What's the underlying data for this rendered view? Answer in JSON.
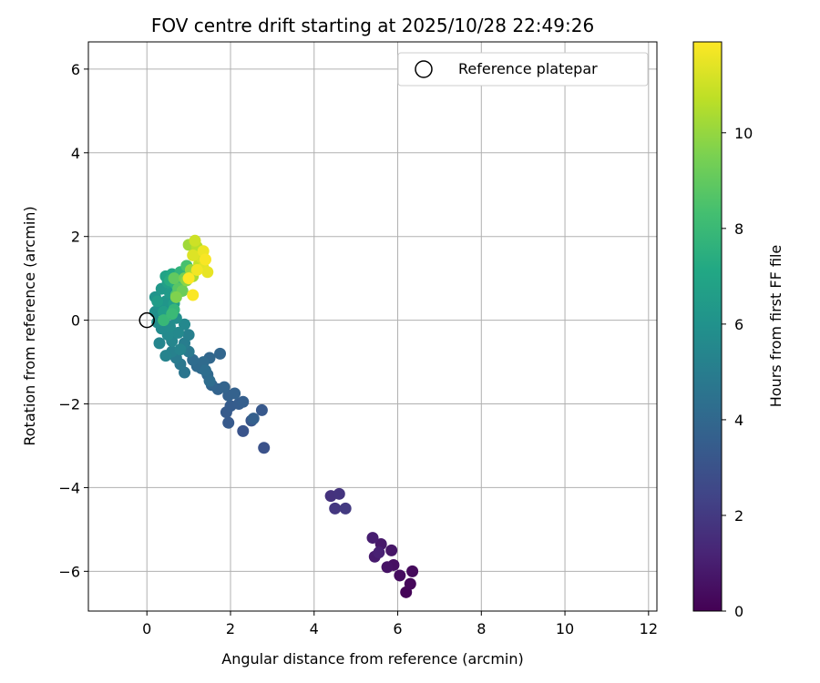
{
  "chart_data": {
    "type": "scatter",
    "title": "FOV centre drift starting at 2025/10/28 22:49:26",
    "xlabel": "Angular distance from reference (arcmin)",
    "ylabel": "Rotation from reference (arcmin)",
    "xlim": [
      -1.4,
      12.2
    ],
    "ylim": [
      -6.95,
      6.65
    ],
    "xticks": [
      0,
      2,
      4,
      6,
      8,
      10,
      12
    ],
    "yticks": [
      -6,
      -4,
      -2,
      0,
      2,
      4,
      6
    ],
    "grid": true,
    "legend": {
      "placement": "top-right",
      "entries": [
        "Reference platepar"
      ]
    },
    "reference_point": {
      "x": 0,
      "y": 0
    },
    "colorbar": {
      "label": "Hours from first FF file",
      "range": [
        0,
        11.9
      ],
      "ticks": [
        0,
        2,
        4,
        6,
        8,
        10
      ],
      "colormap": "viridis"
    },
    "points": [
      {
        "x": 6.2,
        "y": -6.5,
        "h": 0.1
      },
      {
        "x": 6.3,
        "y": -6.3,
        "h": 0.2
      },
      {
        "x": 6.35,
        "y": -6.0,
        "h": 0.3
      },
      {
        "x": 6.05,
        "y": -6.1,
        "h": 0.4
      },
      {
        "x": 5.9,
        "y": -5.85,
        "h": 0.5
      },
      {
        "x": 5.75,
        "y": -5.9,
        "h": 0.6
      },
      {
        "x": 5.85,
        "y": -5.5,
        "h": 0.7
      },
      {
        "x": 5.6,
        "y": -5.35,
        "h": 0.8
      },
      {
        "x": 5.45,
        "y": -5.65,
        "h": 0.9
      },
      {
        "x": 5.4,
        "y": -5.2,
        "h": 1.0
      },
      {
        "x": 5.55,
        "y": -5.55,
        "h": 1.1
      },
      {
        "x": 4.4,
        "y": -4.2,
        "h": 1.7
      },
      {
        "x": 4.6,
        "y": -4.15,
        "h": 1.8
      },
      {
        "x": 4.5,
        "y": -4.5,
        "h": 1.9
      },
      {
        "x": 4.75,
        "y": -4.5,
        "h": 2.0
      },
      {
        "x": 2.8,
        "y": -3.05,
        "h": 3.0
      },
      {
        "x": 2.3,
        "y": -2.65,
        "h": 3.1
      },
      {
        "x": 2.5,
        "y": -2.4,
        "h": 3.2
      },
      {
        "x": 2.75,
        "y": -2.15,
        "h": 3.3
      },
      {
        "x": 1.95,
        "y": -2.45,
        "h": 3.35
      },
      {
        "x": 1.9,
        "y": -2.2,
        "h": 3.4
      },
      {
        "x": 2.0,
        "y": -2.05,
        "h": 3.45
      },
      {
        "x": 2.2,
        "y": -2.0,
        "h": 3.5
      },
      {
        "x": 2.3,
        "y": -1.95,
        "h": 3.55
      },
      {
        "x": 2.55,
        "y": -2.35,
        "h": 3.6
      },
      {
        "x": 1.95,
        "y": -1.8,
        "h": 3.65
      },
      {
        "x": 2.1,
        "y": -1.75,
        "h": 3.7
      },
      {
        "x": 1.7,
        "y": -1.65,
        "h": 3.75
      },
      {
        "x": 1.85,
        "y": -1.6,
        "h": 3.8
      },
      {
        "x": 1.55,
        "y": -1.55,
        "h": 3.85
      },
      {
        "x": 1.75,
        "y": -0.8,
        "h": 3.9
      },
      {
        "x": 1.5,
        "y": -0.9,
        "h": 3.95
      },
      {
        "x": 1.45,
        "y": -1.3,
        "h": 4.0
      },
      {
        "x": 1.3,
        "y": -1.15,
        "h": 4.05
      },
      {
        "x": 1.2,
        "y": -1.1,
        "h": 4.1
      },
      {
        "x": 1.35,
        "y": -1.0,
        "h": 4.15
      },
      {
        "x": 1.1,
        "y": -0.95,
        "h": 4.2
      },
      {
        "x": 1.5,
        "y": -1.45,
        "h": 4.25
      },
      {
        "x": 1.4,
        "y": -1.2,
        "h": 4.3
      },
      {
        "x": 0.9,
        "y": -1.25,
        "h": 4.6
      },
      {
        "x": 0.8,
        "y": -1.05,
        "h": 4.7
      },
      {
        "x": 1.0,
        "y": -0.75,
        "h": 4.8
      },
      {
        "x": 0.7,
        "y": -0.9,
        "h": 4.9
      },
      {
        "x": 0.9,
        "y": -0.55,
        "h": 5.0
      },
      {
        "x": 1.0,
        "y": -0.35,
        "h": 5.1
      },
      {
        "x": 0.6,
        "y": -0.75,
        "h": 5.2
      },
      {
        "x": 0.45,
        "y": -0.85,
        "h": 5.3
      },
      {
        "x": 0.8,
        "y": -0.7,
        "h": 5.35
      },
      {
        "x": 0.3,
        "y": -0.55,
        "h": 5.4
      },
      {
        "x": 0.6,
        "y": -0.5,
        "h": 5.45
      },
      {
        "x": 0.9,
        "y": -0.1,
        "h": 5.5
      },
      {
        "x": 0.75,
        "y": -0.3,
        "h": 5.55
      },
      {
        "x": 0.5,
        "y": -0.35,
        "h": 5.6
      },
      {
        "x": 0.35,
        "y": -0.2,
        "h": 5.65
      },
      {
        "x": 0.55,
        "y": -0.15,
        "h": 5.7
      },
      {
        "x": 0.25,
        "y": -0.05,
        "h": 5.75
      },
      {
        "x": 0.7,
        "y": 0.05,
        "h": 5.8
      },
      {
        "x": 0.45,
        "y": 0.1,
        "h": 5.85
      },
      {
        "x": 0.2,
        "y": 0.2,
        "h": 5.9
      },
      {
        "x": 0.6,
        "y": 0.25,
        "h": 5.95
      },
      {
        "x": 0.3,
        "y": 0.35,
        "h": 6.0
      },
      {
        "x": 0.2,
        "y": 0.55,
        "h": 6.1
      },
      {
        "x": 0.45,
        "y": 0.45,
        "h": 6.2
      },
      {
        "x": 0.35,
        "y": 0.75,
        "h": 6.3
      },
      {
        "x": 0.55,
        "y": 0.65,
        "h": 6.4
      },
      {
        "x": 0.25,
        "y": 0.45,
        "h": 6.5
      },
      {
        "x": 0.4,
        "y": 0.2,
        "h": 6.55
      },
      {
        "x": 0.65,
        "y": 0.4,
        "h": 6.6
      },
      {
        "x": 0.5,
        "y": 0.9,
        "h": 6.7
      },
      {
        "x": 0.45,
        "y": 1.05,
        "h": 6.9
      },
      {
        "x": 0.6,
        "y": 1.1,
        "h": 7.1
      },
      {
        "x": 0.55,
        "y": 0.95,
        "h": 7.3
      },
      {
        "x": 0.7,
        "y": 0.85,
        "h": 7.5
      },
      {
        "x": 0.8,
        "y": 1.15,
        "h": 7.7
      },
      {
        "x": 0.65,
        "y": 0.25,
        "h": 7.8
      },
      {
        "x": 0.4,
        "y": 0.0,
        "h": 7.9
      },
      {
        "x": 0.6,
        "y": 0.15,
        "h": 8.0
      },
      {
        "x": 0.85,
        "y": 0.9,
        "h": 8.2
      },
      {
        "x": 0.95,
        "y": 1.3,
        "h": 8.4
      },
      {
        "x": 0.7,
        "y": 0.6,
        "h": 8.6
      },
      {
        "x": 0.75,
        "y": 0.75,
        "h": 8.8
      },
      {
        "x": 0.65,
        "y": 1.0,
        "h": 9.0
      },
      {
        "x": 0.85,
        "y": 0.7,
        "h": 9.2
      },
      {
        "x": 0.9,
        "y": 1.0,
        "h": 9.4
      },
      {
        "x": 0.7,
        "y": 0.55,
        "h": 9.6
      },
      {
        "x": 0.95,
        "y": 0.95,
        "h": 9.8
      },
      {
        "x": 1.05,
        "y": 1.2,
        "h": 10.0
      },
      {
        "x": 1.0,
        "y": 1.8,
        "h": 10.2
      },
      {
        "x": 1.1,
        "y": 1.05,
        "h": 10.4
      },
      {
        "x": 1.2,
        "y": 1.75,
        "h": 10.6
      },
      {
        "x": 1.25,
        "y": 1.35,
        "h": 10.8
      },
      {
        "x": 1.15,
        "y": 1.9,
        "h": 11.0
      },
      {
        "x": 1.3,
        "y": 1.5,
        "h": 11.2
      },
      {
        "x": 1.1,
        "y": 1.55,
        "h": 11.3
      },
      {
        "x": 1.35,
        "y": 1.25,
        "h": 11.4
      },
      {
        "x": 1.45,
        "y": 1.15,
        "h": 11.5
      },
      {
        "x": 1.35,
        "y": 1.65,
        "h": 11.6
      },
      {
        "x": 1.2,
        "y": 1.2,
        "h": 11.7
      },
      {
        "x": 1.4,
        "y": 1.45,
        "h": 11.8
      },
      {
        "x": 1.1,
        "y": 0.6,
        "h": 11.85
      },
      {
        "x": 1.0,
        "y": 1.0,
        "h": 11.9
      }
    ]
  }
}
